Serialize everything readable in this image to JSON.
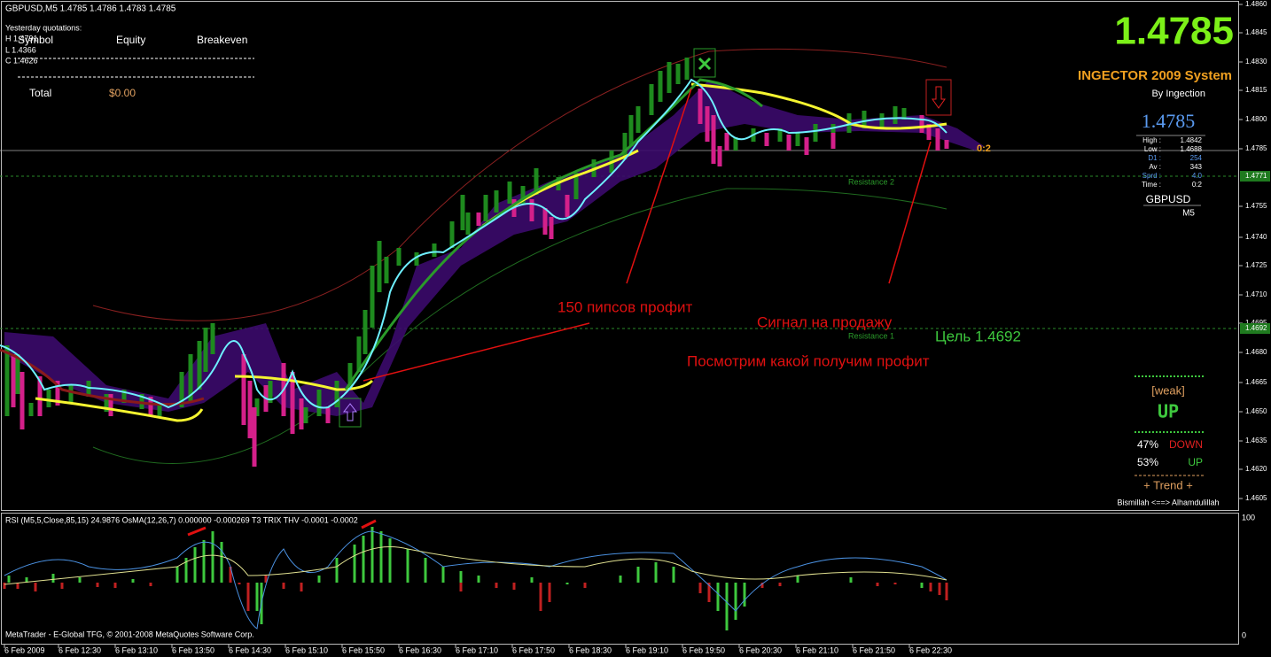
{
  "header": {
    "symbol_line": "GBPUSD,M5  1.4785 1.4786 1.4783 1.4785",
    "yesterday": "Yesterday quotations:",
    "high": "H 1.4791",
    "low": "L 1.4366",
    "close": "C 1.4626"
  },
  "table": {
    "headers": [
      "Symbol",
      "Equity",
      "Breakeven"
    ],
    "total_label": "Total",
    "total_value": "$0.00"
  },
  "system": {
    "price": "1.4785",
    "name": "INGECTOR 2009 System",
    "author": "By Ingection"
  },
  "info": {
    "price": "1.4785",
    "rows": [
      [
        "High :",
        "1.4842"
      ],
      [
        "Low :",
        "1.4688"
      ],
      [
        "D1 :",
        "254"
      ],
      [
        "Av :",
        "343"
      ],
      [
        "Sprd :",
        "4.0"
      ],
      [
        "Time :",
        "0:2"
      ]
    ],
    "symbol": "GBPUSD",
    "timeframe": "M5"
  },
  "countdown": "0:2",
  "levels": {
    "resistance2": "Resistance 2",
    "resistance1": "Resistance 1"
  },
  "annotations": {
    "profit": "150  пипсов профит",
    "sell_signal": "Сигнал на продажу",
    "target": "Цель 1.4692",
    "watch": "Посмотрим какой получим профит"
  },
  "trend_panel": {
    "strength": "[weak]",
    "direction": "UP",
    "down_pct": "47%",
    "down_label": "DOWN",
    "up_pct": "53%",
    "up_label": "UP",
    "trend": "+  Trend  +",
    "footer": "Bismillah  <==>  Alhamdulillah"
  },
  "price_axis": [
    "1.4860",
    "1.4845",
    "1.4830",
    "1.4815",
    "1.4800",
    "1.4785",
    "1.4771",
    "1.4755",
    "1.4740",
    "1.4725",
    "1.4710",
    "1.4695",
    "1.4692",
    "1.4680",
    "1.4665",
    "1.4650",
    "1.4635",
    "1.4620",
    "1.4605"
  ],
  "indicator": {
    "title": "RSI (M5,5,Close,85,15) 24.9876  OsMA(12,26,7) 0.000000 -0.000269  T3 TRIX THV -0.0001 -0.0002",
    "axis_top": "100",
    "axis_bottom": "0",
    "copyright": "MetaTrader - E-Global TFG, © 2001-2008 MetaQuotes Software Corp."
  },
  "time_axis": [
    "6 Feb 2009",
    "6 Feb 12:30",
    "6 Feb 13:10",
    "6 Feb 13:50",
    "6 Feb 14:30",
    "6 Feb 15:10",
    "6 Feb 15:50",
    "6 Feb 16:30",
    "6 Feb 17:10",
    "6 Feb 17:50",
    "6 Feb 18:30",
    "6 Feb 19:10",
    "6 Feb 19:50",
    "6 Feb 20:30",
    "6 Feb 21:10",
    "6 Feb 21:50",
    "6 Feb 22:30"
  ]
}
